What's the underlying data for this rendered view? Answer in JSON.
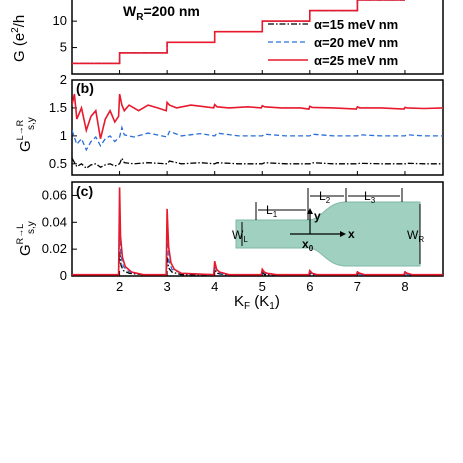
{
  "chart_data": [
    {
      "type": "line",
      "panel": "a",
      "panel_label": "",
      "annotation": "WR=200 nm",
      "annotation_main": "W",
      "annotation_sub": "R",
      "annotation_rest": "=200 nm",
      "ylabel": "G (e²/h",
      "ylabel_main": "G (e",
      "ylabel_sup": "2",
      "ylabel_end": "/h",
      "yticks": [
        5,
        10
      ],
      "ylim": [
        0,
        14
      ],
      "x_step_positions": [
        1,
        2,
        3,
        4,
        5,
        6,
        7,
        8
      ],
      "x_range": [
        1,
        8.8
      ],
      "step_value_per_channel": 2,
      "legend": [
        "α=15 meV nm",
        "α=20 meV nm",
        "α=25 meV nm"
      ],
      "series": [
        {
          "name": "α=15 meV nm",
          "color": "#000000",
          "style": "dashdot",
          "x": [
            1.0,
            2.0,
            2.0,
            3.0,
            3.0,
            4.0,
            4.0,
            5.0,
            5.0,
            6.0,
            6.0,
            7.0,
            7.0,
            8.0
          ],
          "y": [
            2,
            2,
            4,
            4,
            6,
            6,
            8,
            8,
            10,
            10,
            12,
            12,
            14,
            14
          ]
        },
        {
          "name": "α=20 meV nm",
          "color": "#2a6fd6",
          "style": "dashed",
          "x": [
            1.0,
            2.0,
            2.0,
            3.0,
            3.0,
            4.0,
            4.0,
            5.0,
            5.0,
            6.0,
            6.0,
            7.0,
            7.0,
            8.0
          ],
          "y": [
            2,
            2,
            4,
            4,
            6,
            6,
            8,
            8,
            10,
            10,
            12,
            12,
            14,
            14
          ]
        },
        {
          "name": "α=25 meV nm",
          "color": "#e8192c",
          "style": "solid",
          "x": [
            1.0,
            2.0,
            2.0,
            3.0,
            3.0,
            4.0,
            4.0,
            5.0,
            5.0,
            6.0,
            6.0,
            7.0,
            7.0,
            8.0
          ],
          "y": [
            2,
            2,
            4,
            4,
            6,
            6,
            8,
            8,
            10,
            10,
            12,
            12,
            14,
            14
          ]
        }
      ]
    },
    {
      "type": "line",
      "panel": "b",
      "panel_label": "(b)",
      "ylabel": "G_{s,y}^{L→R}",
      "ylabel_main": "G",
      "ylabel_sup": "L→R",
      "ylabel_sub": "s,y",
      "yticks": [
        0.5,
        1,
        1.5,
        2
      ],
      "ytick_labels": [
        "0.5",
        "1",
        "1.5",
        "2"
      ],
      "ylim": [
        0.3,
        2.0
      ],
      "x_range": [
        1,
        8.8
      ],
      "series": [
        {
          "name": "α=15 meV nm",
          "color": "#000000",
          "style": "dashdot",
          "x": [
            1.0,
            1.1,
            1.2,
            1.3,
            1.4,
            1.5,
            1.6,
            1.7,
            1.8,
            1.9,
            2.0,
            2.05,
            2.1,
            2.3,
            2.6,
            3.0,
            3.05,
            3.3,
            3.7,
            4.0,
            4.05,
            4.5,
            5.0,
            5.05,
            5.5,
            6.0,
            6.05,
            6.5,
            7.0,
            7.05,
            7.5,
            8.0,
            8.05,
            8.4,
            8.8
          ],
          "y": [
            0.6,
            0.45,
            0.5,
            0.42,
            0.48,
            0.5,
            0.44,
            0.48,
            0.5,
            0.46,
            0.5,
            0.6,
            0.52,
            0.5,
            0.52,
            0.5,
            0.55,
            0.5,
            0.52,
            0.5,
            0.52,
            0.5,
            0.5,
            0.52,
            0.5,
            0.5,
            0.52,
            0.5,
            0.5,
            0.51,
            0.5,
            0.5,
            0.51,
            0.5,
            0.5
          ]
        },
        {
          "name": "α=20 meV nm",
          "color": "#2a6fd6",
          "style": "dashed",
          "x": [
            1.0,
            1.1,
            1.2,
            1.3,
            1.4,
            1.5,
            1.6,
            1.7,
            1.8,
            1.9,
            2.0,
            2.05,
            2.1,
            2.3,
            2.6,
            3.0,
            3.05,
            3.3,
            3.7,
            4.0,
            4.05,
            4.5,
            5.0,
            5.05,
            5.5,
            6.0,
            6.05,
            6.5,
            7.0,
            7.05,
            7.5,
            8.0,
            8.05,
            8.4,
            8.8
          ],
          "y": [
            1.1,
            0.85,
            0.95,
            0.75,
            0.9,
            0.98,
            0.82,
            0.95,
            1.0,
            0.9,
            0.98,
            1.15,
            1.02,
            0.98,
            1.05,
            0.98,
            1.08,
            1.0,
            1.04,
            1.0,
            1.05,
            1.0,
            1.0,
            1.03,
            1.0,
            1.0,
            1.03,
            1.0,
            1.0,
            1.02,
            1.0,
            1.0,
            1.02,
            1.0,
            1.0
          ]
        },
        {
          "name": "α=25 meV nm",
          "color": "#e8192c",
          "style": "solid",
          "x": [
            1.0,
            1.05,
            1.1,
            1.2,
            1.3,
            1.4,
            1.5,
            1.6,
            1.7,
            1.8,
            1.9,
            1.98,
            2.0,
            2.05,
            2.1,
            2.2,
            2.4,
            2.6,
            2.8,
            2.98,
            3.0,
            3.05,
            3.2,
            3.5,
            3.8,
            3.98,
            4.0,
            4.05,
            4.3,
            4.7,
            4.98,
            5.0,
            5.05,
            5.4,
            5.8,
            5.98,
            6.0,
            6.05,
            6.5,
            6.98,
            7.0,
            7.05,
            7.5,
            7.98,
            8.0,
            8.05,
            8.4,
            8.8
          ],
          "y": [
            1.55,
            1.75,
            1.3,
            1.5,
            1.1,
            1.35,
            1.45,
            0.95,
            1.3,
            1.45,
            1.25,
            1.35,
            1.75,
            1.55,
            1.45,
            1.55,
            1.45,
            1.55,
            1.5,
            1.45,
            1.6,
            1.55,
            1.5,
            1.55,
            1.52,
            1.5,
            1.56,
            1.52,
            1.5,
            1.52,
            1.5,
            1.54,
            1.52,
            1.5,
            1.5,
            1.48,
            1.53,
            1.51,
            1.5,
            1.48,
            1.52,
            1.5,
            1.5,
            1.48,
            1.51,
            1.5,
            1.49,
            1.5
          ]
        }
      ]
    },
    {
      "type": "line",
      "panel": "c",
      "panel_label": "(c)",
      "ylabel": "G_{s,y}^{R→L}",
      "ylabel_main": "G",
      "ylabel_sup": "R→L",
      "ylabel_sub": "s,y",
      "xlabel": "KF (K1)",
      "xlabel_main": "K",
      "xlabel_sub": "F",
      "xlabel_rest": " (K",
      "xlabel_sub2": "1",
      "xlabel_end": ")",
      "xticks": [
        2,
        3,
        4,
        5,
        6,
        7,
        8
      ],
      "xlim": [
        1,
        8.8
      ],
      "yticks": [
        0,
        0.02,
        0.04,
        0.06
      ],
      "ytick_labels": [
        "0",
        "0.02",
        "0.04",
        "0.06"
      ],
      "ylim": [
        0,
        0.07
      ],
      "series": [
        {
          "name": "α=15 meV nm",
          "color": "#000000",
          "style": "dashdot",
          "x": [
            1.0,
            1.5,
            1.98,
            2.0,
            2.03,
            2.08,
            2.2,
            2.5,
            2.98,
            3.0,
            3.03,
            3.1,
            3.3,
            3.98,
            4.0,
            4.05,
            4.2,
            4.98,
            5.0,
            5.05,
            5.3,
            5.98,
            6.0,
            6.06,
            6.3,
            6.98,
            7.0,
            7.06,
            7.3,
            7.98,
            8.0,
            8.06,
            8.3,
            8.8
          ],
          "y": [
            0.001,
            0.001,
            0.001,
            0.018,
            0.008,
            0.004,
            0.002,
            0.001,
            0.001,
            0.014,
            0.006,
            0.003,
            0.001,
            0.001,
            0.005,
            0.002,
            0.001,
            0.001,
            0.003,
            0.001,
            0.001,
            0.001,
            0.002,
            0.001,
            0.001,
            0.001,
            0.002,
            0.001,
            0.001,
            0.001,
            0.002,
            0.001,
            0.001,
            0.001
          ]
        },
        {
          "name": "α=20 meV nm",
          "color": "#2a6fd6",
          "style": "dashed",
          "x": [
            1.0,
            1.5,
            1.98,
            2.0,
            2.03,
            2.08,
            2.2,
            2.5,
            2.98,
            3.0,
            3.03,
            3.1,
            3.3,
            3.98,
            4.0,
            4.05,
            4.2,
            4.98,
            5.0,
            5.05,
            5.3,
            5.98,
            6.0,
            6.06,
            6.3,
            6.98,
            7.0,
            7.06,
            7.3,
            7.98,
            8.0,
            8.06,
            8.3,
            8.8
          ],
          "y": [
            0.001,
            0.001,
            0.001,
            0.035,
            0.015,
            0.007,
            0.003,
            0.001,
            0.001,
            0.028,
            0.012,
            0.005,
            0.002,
            0.001,
            0.008,
            0.003,
            0.001,
            0.001,
            0.004,
            0.002,
            0.001,
            0.001,
            0.003,
            0.001,
            0.001,
            0.001,
            0.003,
            0.001,
            0.001,
            0.001,
            0.003,
            0.001,
            0.001,
            0.001
          ]
        },
        {
          "name": "α=25 meV nm",
          "color": "#e8192c",
          "style": "solid",
          "x": [
            1.0,
            1.5,
            1.98,
            2.0,
            2.02,
            2.06,
            2.12,
            2.25,
            2.5,
            2.98,
            3.0,
            3.03,
            3.08,
            3.15,
            3.3,
            3.98,
            4.0,
            4.04,
            4.1,
            4.3,
            4.98,
            5.0,
            5.04,
            5.1,
            5.3,
            5.98,
            6.0,
            6.05,
            6.15,
            6.98,
            7.0,
            7.05,
            7.15,
            7.98,
            8.0,
            8.05,
            8.15,
            8.8
          ],
          "y": [
            0.001,
            0.001,
            0.001,
            0.066,
            0.03,
            0.014,
            0.007,
            0.003,
            0.001,
            0.001,
            0.05,
            0.022,
            0.01,
            0.005,
            0.002,
            0.001,
            0.011,
            0.005,
            0.003,
            0.001,
            0.001,
            0.005,
            0.003,
            0.002,
            0.001,
            0.001,
            0.004,
            0.002,
            0.001,
            0.001,
            0.003,
            0.002,
            0.001,
            0.001,
            0.003,
            0.002,
            0.001,
            0.001
          ]
        }
      ]
    }
  ],
  "inset": {
    "labels": {
      "L1": "L",
      "L1_sub": "1",
      "L2": "L",
      "L2_sub": "2",
      "L3": "L",
      "L3_sub": "3",
      "WL": "W",
      "WL_sub": "L",
      "WR": "W",
      "WR_sub": "R",
      "x0": "x",
      "x0_sub": "0",
      "x": "x",
      "y": "y"
    },
    "fill_color": "#9fd0c0"
  }
}
